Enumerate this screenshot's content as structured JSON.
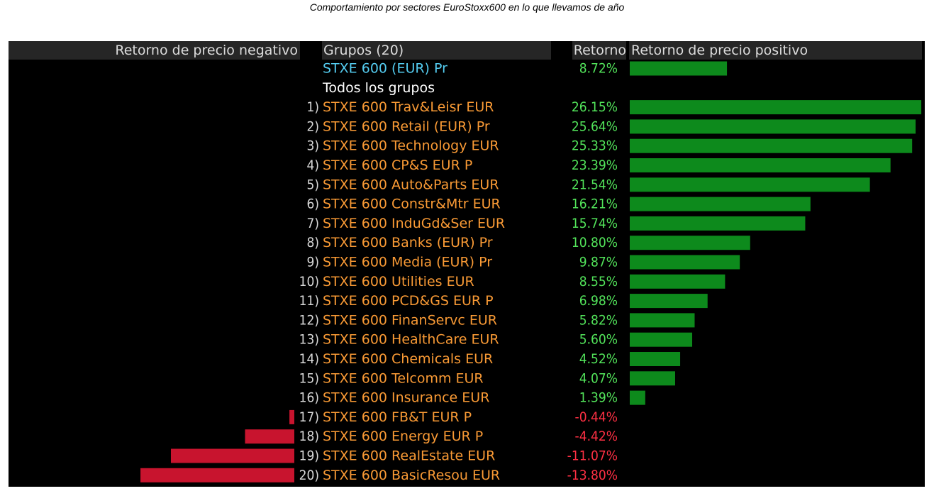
{
  "title": "Comportamiento por sectores EuroStoxx600 en lo que llevamos de año",
  "header": {
    "negative_label": "Retorno de precio negativo",
    "group_label": "Grupos (20)",
    "return_label": "Retorno",
    "positive_label": "Retorno de precio positivo"
  },
  "colors": {
    "positive_bar": "#0d8a1c",
    "negative_bar": "#c8142e",
    "positive_text": "#52e35a",
    "negative_text": "#ff3044",
    "index_text": "#54ccf0",
    "group_text": "#f99a35",
    "label_text": "#ffffff",
    "rank_text": "#d8d8d8"
  },
  "chart_data": {
    "type": "bar",
    "orientation": "horizontal",
    "title": "Comportamiento por sectores EuroStoxx600 en lo que llevamos de año",
    "value_unit": "%",
    "benchmark": {
      "name": "STXE 600 (EUR) Pr",
      "value": 8.72,
      "value_label": "8.72%"
    },
    "section_label": "Todos los grupos",
    "categories": [
      "STXE 600 Trav&Leisr EUR",
      "STXE 600 Retail (EUR) Pr",
      "STXE 600 Technology EUR",
      "STXE 600 CP&S EUR P",
      "STXE 600 Auto&Parts EUR",
      "STXE 600 Constr&Mtr EUR",
      "STXE 600 InduGd&Ser EUR",
      "STXE 600 Banks (EUR) Pr",
      "STXE 600 Media (EUR) Pr",
      "STXE 600 Utilities EUR",
      "STXE 600 PCD&GS EUR P",
      "STXE 600 FinanServc EUR",
      "STXE 600 HealthCare EUR",
      "STXE 600 Chemicals EUR",
      "STXE 600 Telcomm EUR",
      "STXE 600 Insurance EUR",
      "STXE 600 FB&T EUR P",
      "STXE 600 Energy EUR P",
      "STXE 600 RealEstate EUR",
      "STXE 600 BasicResou EUR"
    ],
    "ranks": [
      "1)",
      "2)",
      "3)",
      "4)",
      "5)",
      "6)",
      "7)",
      "8)",
      "9)",
      "10)",
      "11)",
      "12)",
      "13)",
      "14)",
      "15)",
      "16)",
      "17)",
      "18)",
      "19)",
      "20)"
    ],
    "values": [
      26.15,
      25.64,
      25.33,
      23.39,
      21.54,
      16.21,
      15.74,
      10.8,
      9.87,
      8.55,
      6.98,
      5.82,
      5.6,
      4.52,
      4.07,
      1.39,
      -0.44,
      -4.42,
      -11.07,
      -13.8
    ],
    "value_labels": [
      "26.15%",
      "25.64%",
      "25.33%",
      "23.39%",
      "21.54%",
      "16.21%",
      "15.74%",
      "10.80%",
      "9.87%",
      "8.55%",
      "6.98%",
      "5.82%",
      "5.60%",
      "4.52%",
      "4.07%",
      "1.39%",
      "-0.44%",
      "-4.42%",
      "-11.07%",
      "-13.80%"
    ]
  }
}
